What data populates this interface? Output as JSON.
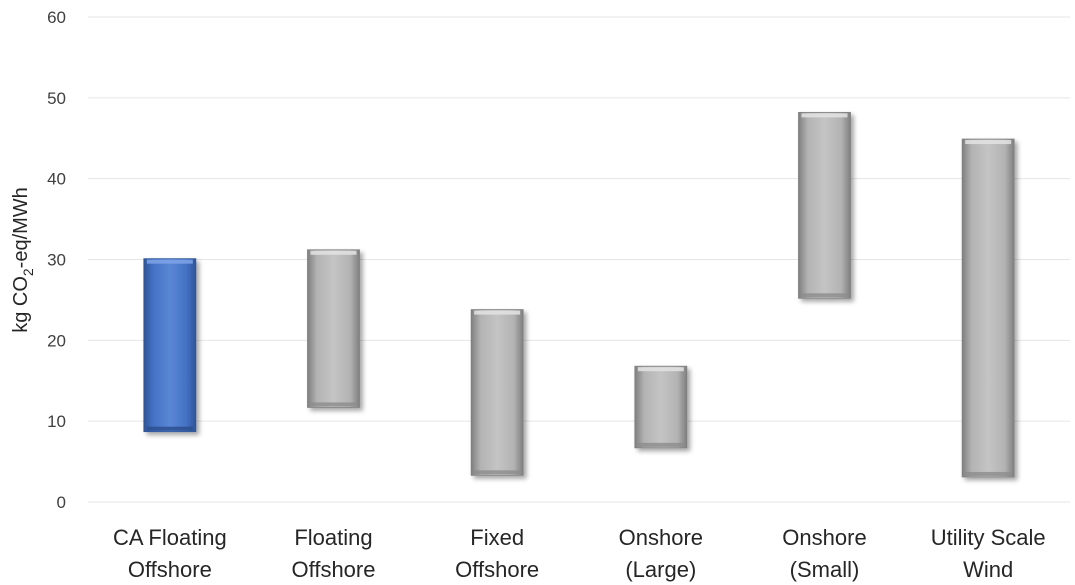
{
  "chart_data": {
    "type": "bar",
    "subtype": "floating-range",
    "title": "",
    "xlabel": "",
    "ylabel": {
      "prefix": "kg CO",
      "subscript": "2",
      "suffix": "-eq/MWh"
    },
    "ylim": [
      0,
      60
    ],
    "yticks": [
      0,
      10,
      20,
      30,
      40,
      50,
      60
    ],
    "grid": true,
    "categories": [
      [
        "CA Floating",
        "Offshore"
      ],
      [
        "Floating",
        "Offshore"
      ],
      [
        "Fixed",
        "Offshore"
      ],
      [
        "Onshore",
        "(Large)"
      ],
      [
        "Onshore",
        "(Small)"
      ],
      [
        "Utility Scale",
        "Wind"
      ]
    ],
    "ranges": [
      {
        "low": 8.7,
        "high": 30.1,
        "color": "#4472c4"
      },
      {
        "low": 11.7,
        "high": 31.2,
        "color": "#a6a6a6"
      },
      {
        "low": 3.3,
        "high": 23.8,
        "color": "#a6a6a6"
      },
      {
        "low": 6.7,
        "high": 16.8,
        "color": "#a6a6a6"
      },
      {
        "low": 25.2,
        "high": 48.2,
        "color": "#a6a6a6"
      },
      {
        "low": 3.1,
        "high": 44.9,
        "color": "#a6a6a6"
      }
    ]
  }
}
